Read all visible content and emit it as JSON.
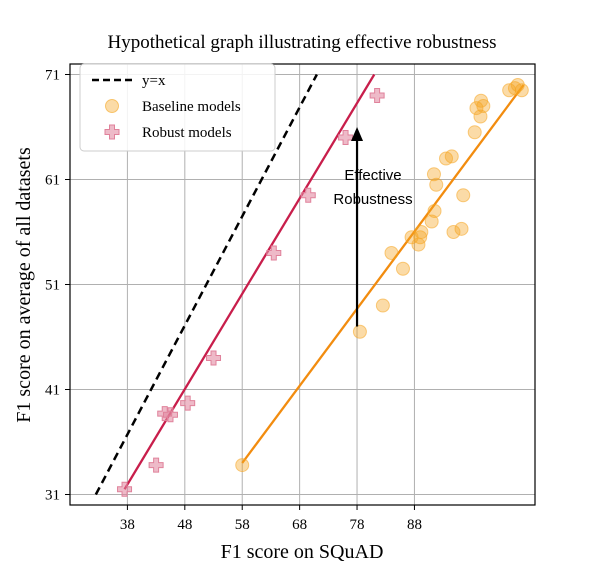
{
  "chart_data": {
    "type": "scatter",
    "title": "Hypothetical graph illustrating effective robustness",
    "xlabel": "F1 score on SQuAD",
    "ylabel": "F1 score on average of all datasets",
    "xlim": [
      28,
      109
    ],
    "ylim": [
      30,
      72
    ],
    "xticks": [
      "38",
      "48",
      "58",
      "68",
      "78",
      "88"
    ],
    "yticks": [
      "31",
      "41",
      "51",
      "61",
      "71"
    ],
    "grid": true,
    "legend_position": "top-left",
    "legend": [
      "y=x",
      "Baseline models",
      "Robust models"
    ],
    "annotation": {
      "text_lines": [
        "Effective",
        "Robustness"
      ],
      "arrow_from": [
        78,
        47
      ],
      "arrow_to": [
        78,
        66
      ]
    },
    "reference_line": {
      "name": "y=x",
      "style": "dashed",
      "color": "#000000",
      "points": [
        [
          32.5,
          31
        ],
        [
          71,
          71
        ]
      ]
    },
    "series": [
      {
        "name": "Baseline models",
        "marker": "circle",
        "color": "#f5a623",
        "line_color": "#f28c0f",
        "fit_line": [
          [
            58,
            34
          ],
          [
            107,
            70
          ]
        ],
        "points": [
          [
            58,
            33.8
          ],
          [
            78.5,
            46.5
          ],
          [
            82.5,
            49
          ],
          [
            84,
            54
          ],
          [
            86,
            52.5
          ],
          [
            87.5,
            55.5
          ],
          [
            89,
            55.5
          ],
          [
            88.7,
            54.8
          ],
          [
            89.2,
            56
          ],
          [
            91,
            57
          ],
          [
            91.5,
            58
          ],
          [
            91.8,
            60.5
          ],
          [
            91.4,
            61.5
          ],
          [
            93.5,
            63
          ],
          [
            94.5,
            63.2
          ],
          [
            94.8,
            56
          ],
          [
            96.2,
            56.3
          ],
          [
            96.5,
            59.5
          ],
          [
            98.5,
            65.5
          ],
          [
            99.5,
            67
          ],
          [
            99.6,
            68.5
          ],
          [
            100,
            68
          ],
          [
            104.5,
            69.5
          ],
          [
            105.5,
            69.7
          ],
          [
            106,
            70
          ],
          [
            106.7,
            69.5
          ],
          [
            98.8,
            67.8
          ]
        ]
      },
      {
        "name": "Robust models",
        "marker": "plus",
        "color": "#e0829b",
        "line_color": "#c81e4b",
        "fit_line": [
          [
            37.5,
            31.5
          ],
          [
            81,
            71
          ]
        ],
        "points": [
          [
            37.5,
            31.5
          ],
          [
            43,
            33.8
          ],
          [
            44.5,
            38.7
          ],
          [
            45.5,
            38.6
          ],
          [
            48.5,
            39.7
          ],
          [
            53,
            44
          ],
          [
            63.5,
            54
          ],
          [
            69.5,
            59.5
          ],
          [
            76,
            65
          ],
          [
            81.5,
            69
          ]
        ]
      }
    ]
  }
}
